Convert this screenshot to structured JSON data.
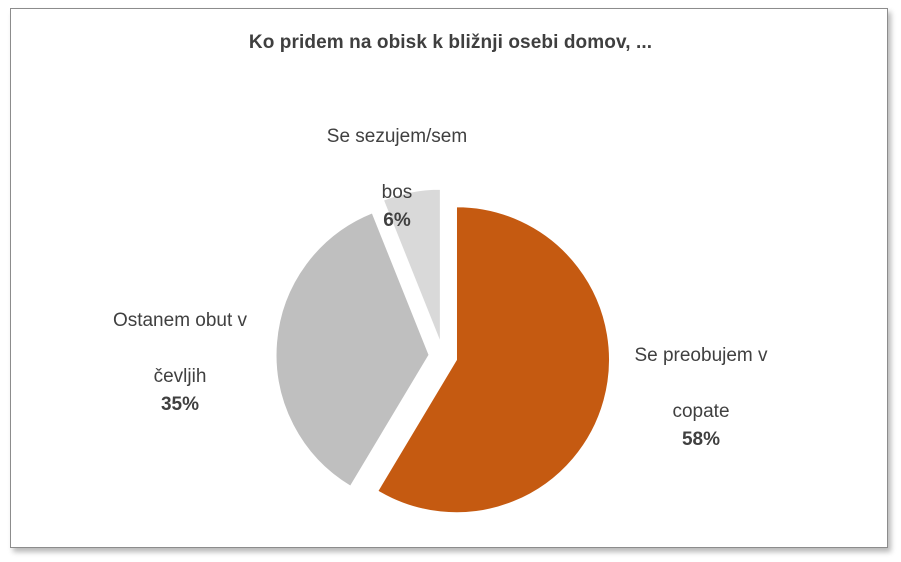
{
  "chart_data": {
    "type": "pie",
    "title": "Ko pridem na obisk k bližnji osebi domov, ...",
    "slices": [
      {
        "label": "Se preobujem v copate",
        "label_lines": [
          "Se preobujem  v",
          "copate"
        ],
        "value": 58,
        "display": "58%",
        "color": "#C55A11"
      },
      {
        "label": "Ostanem obut v čevljih",
        "label_lines": [
          "Ostanem obut  v",
          "čevljih"
        ],
        "value": 35,
        "display": "35%",
        "color": "#BFBFBF"
      },
      {
        "label": "Se sezujem/sem bos",
        "label_lines": [
          "Se sezujem/sem",
          "bos"
        ],
        "value": 6,
        "display": "6%",
        "color": "#D9D9D9"
      }
    ],
    "start_angle_deg": 0,
    "direction": "clockwise",
    "exploded": true,
    "legend": "none"
  }
}
